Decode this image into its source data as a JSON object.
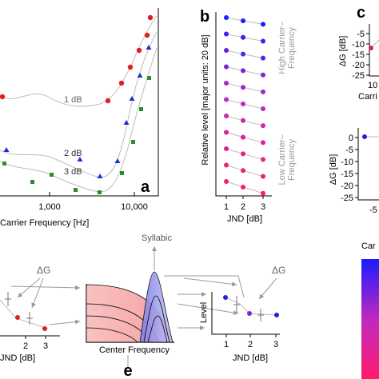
{
  "panels": {
    "a": {
      "letter": "a",
      "xlabel": "Carrier Frequency [Hz]",
      "xtick": [
        "1,000",
        "10,000"
      ],
      "curve_labels": [
        "1 dB",
        "2 dB",
        "3 dB"
      ],
      "colors": {
        "one_db": "#e0211b",
        "two_db": "#1f2fd6",
        "three_db": "#2a8f2a",
        "curve": "#bdbdbd"
      }
    },
    "b": {
      "letter": "b",
      "ylabel": "Relative level [major units: 20 dB]",
      "xlabel": "JND [dB]",
      "xtick": [
        "1",
        "2",
        "3"
      ],
      "high_label_1": "High Carrier",
      "high_label_2": "Frequency",
      "low_label_1": "Low Carrier",
      "low_label_2": "Frequency",
      "dash": "–"
    },
    "c": {
      "letter": "c",
      "ylabel": "ΔG [dB]",
      "ytick": [
        "-5",
        "-10",
        "-15",
        "-20",
        "-25"
      ],
      "xtick_partial": "10",
      "xlabel_partial": "Carri"
    },
    "d": {
      "ylabel": "ΔG [dB]",
      "ytick": [
        "0",
        "-5",
        "-10",
        "-15",
        "-20",
        "-25"
      ],
      "xtick_partial": "-5"
    },
    "colorbar": {
      "title_partial": "Car",
      "top": "#1b1bff",
      "mid": "#c028c0",
      "bottom": "#ff1b6b"
    },
    "e": {
      "letter": "e",
      "left_xlabel": "JND [dB]",
      "left_xtick": [
        "2",
        "3"
      ],
      "delta_g": "ΔG",
      "middle_xlabel": "Center Frequency",
      "syllabic": "Syllabic",
      "right_ylabel": "Level",
      "right_xlabel": "JND [dB]",
      "right_xtick": [
        "1",
        "2",
        "3"
      ]
    }
  }
}
